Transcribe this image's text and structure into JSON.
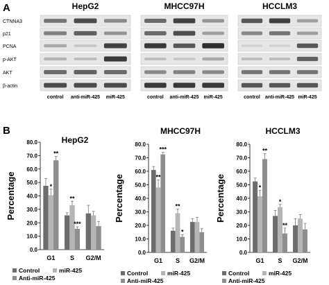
{
  "panel_a": {
    "letter": "A",
    "proteins": [
      "CTNNA3",
      "p21",
      "PCNA",
      "p-AKT",
      "AKT",
      "β-actin"
    ],
    "blots": [
      {
        "title": "HepG2",
        "lanes": [
          "control",
          "anti-miR-425",
          "miR-425"
        ],
        "intensity": [
          [
            0.55,
            0.75,
            0.45
          ],
          [
            0.5,
            0.65,
            0.4
          ],
          [
            0.3,
            0.15,
            0.8
          ],
          [
            0.25,
            0.2,
            0.85
          ],
          [
            0.6,
            0.65,
            0.6
          ],
          [
            0.75,
            0.75,
            0.75
          ]
        ]
      },
      {
        "title": "MHCC97H",
        "lanes": [
          "control",
          "anti-miR-425",
          "miR-425"
        ],
        "intensity": [
          [
            0.6,
            0.8,
            0.4
          ],
          [
            0.6,
            0.75,
            0.35
          ],
          [
            0.85,
            0.7,
            0.9
          ],
          [
            0.2,
            0.15,
            0.3
          ],
          [
            0.45,
            0.5,
            0.45
          ],
          [
            0.85,
            0.85,
            0.85
          ]
        ]
      },
      {
        "title": "HCCLM3",
        "lanes": [
          "control",
          "anti-miR-425",
          "miR-425"
        ],
        "intensity": [
          [
            0.7,
            0.8,
            0.35
          ],
          [
            0.45,
            0.55,
            0.35
          ],
          [
            0.1,
            0.1,
            0.7
          ],
          [
            0.2,
            0.2,
            0.65
          ],
          [
            0.55,
            0.55,
            0.55
          ],
          [
            0.7,
            0.7,
            0.7
          ]
        ]
      }
    ]
  },
  "panel_b": {
    "letter": "B",
    "ylabel": "Percentage",
    "categories": [
      "G1",
      "S",
      "G2/M"
    ],
    "legend": [
      "Control",
      "miR-425",
      "Anti-miR-425"
    ],
    "colors": [
      "#6d6d6d",
      "#b5b5b5",
      "#8e8e8e"
    ]
  },
  "chart_data": [
    {
      "type": "bar",
      "title": "HepG2",
      "ylabel": "Percentage",
      "categories": [
        "G1",
        "S",
        "G2/M"
      ],
      "ylim": [
        0,
        80
      ],
      "yticks": [
        "0.0",
        "10.0",
        "20.0",
        "30.0",
        "40.0",
        "50.0",
        "60.0",
        "70.0",
        "80.0"
      ],
      "series": [
        {
          "name": "Control",
          "values": [
            47.5,
            25.5,
            27.0
          ],
          "errors": [
            5.5,
            2.0,
            6.0
          ],
          "stars": [
            "",
            "",
            ""
          ]
        },
        {
          "name": "miR-425",
          "values": [
            40.5,
            33.0,
            25.5
          ],
          "errors": [
            4.5,
            3.0,
            3.0
          ],
          "stars": [
            "*",
            "**",
            ""
          ]
        },
        {
          "name": "Anti-miR-425",
          "values": [
            66.5,
            15.5,
            17.5
          ],
          "errors": [
            3.0,
            1.5,
            3.5
          ],
          "stars": [
            "**",
            "***",
            ""
          ]
        }
      ]
    },
    {
      "type": "bar",
      "title": "MHCC97H",
      "ylabel": "Percentage",
      "categories": [
        "G1",
        "S",
        "G2/M"
      ],
      "ylim": [
        0,
        80
      ],
      "yticks": [
        "0.0",
        "10.0",
        "20.0",
        "30.0",
        "40.0",
        "50.0",
        "60.0",
        "70.0",
        "80.0"
      ],
      "series": [
        {
          "name": "Control",
          "values": [
            61.0,
            16.0,
            22.5
          ],
          "errors": [
            2.5,
            2.0,
            2.5
          ],
          "stars": [
            "",
            "",
            ""
          ]
        },
        {
          "name": "miR-425",
          "values": [
            48.0,
            29.0,
            22.5
          ],
          "errors": [
            5.5,
            3.0,
            3.5
          ],
          "stars": [
            "**",
            "**",
            ""
          ]
        },
        {
          "name": "Anti-miR-425",
          "values": [
            72.5,
            11.5,
            15.0
          ],
          "errors": [
            1.5,
            1.5,
            2.5
          ],
          "stars": [
            "***",
            "*",
            ""
          ]
        }
      ]
    },
    {
      "type": "bar",
      "title": "HCCLM3",
      "ylabel": "Percentage",
      "categories": [
        "G1",
        "S",
        "G2/M"
      ],
      "ylim": [
        0,
        80
      ],
      "yticks": [
        "0.0",
        "10.0",
        "20.0",
        "30.0",
        "40.0",
        "50.0",
        "60.0",
        "70.0",
        "80.0"
      ],
      "series": [
        {
          "name": "Control",
          "values": [
            52.5,
            27.0,
            20.0
          ],
          "errors": [
            2.5,
            4.0,
            5.0
          ],
          "stars": [
            "",
            "",
            ""
          ]
        },
        {
          "name": "miR-425",
          "values": [
            41.5,
            33.5,
            25.0
          ],
          "errors": [
            4.5,
            2.0,
            3.0
          ],
          "stars": [
            "*",
            "*",
            ""
          ]
        },
        {
          "name": "Anti-miR-425",
          "values": [
            69.0,
            14.0,
            17.0
          ],
          "errors": [
            4.0,
            4.0,
            4.5
          ],
          "stars": [
            "**",
            "**",
            ""
          ]
        }
      ]
    }
  ]
}
